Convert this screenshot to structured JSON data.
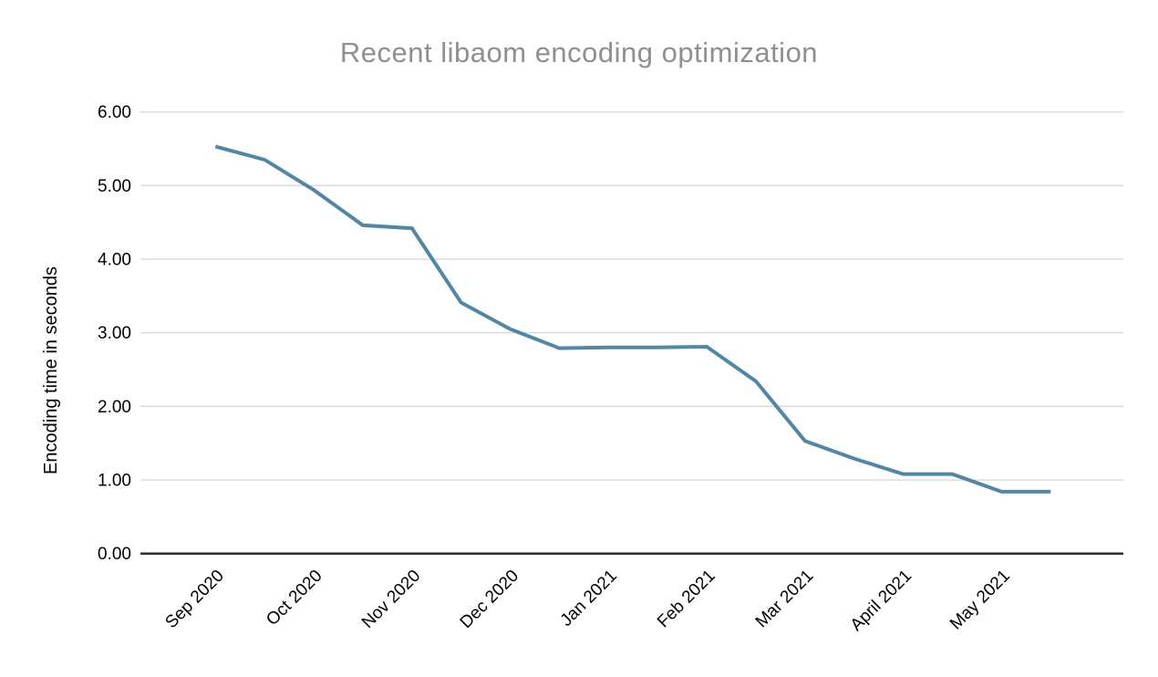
{
  "title": "Recent libaom encoding optimization",
  "colors": {
    "line": "#5286a5",
    "grid": "#d9d9d9",
    "axis": "#2e2e2e",
    "tick_label": "#000000",
    "title": "#8f8f8f",
    "background": "#ffffff"
  },
  "chart_data": {
    "type": "line",
    "title": "Recent libaom encoding optimization",
    "xlabel": "",
    "ylabel": "Encoding time in seconds",
    "x_tick_labels": [
      "Sep 2020",
      "Oct 2020",
      "Nov 2020",
      "Dec 2020",
      "Jan 2021",
      "Feb 2021",
      "Mar 2021",
      "April 2021",
      "May 2021"
    ],
    "x": [
      "2020-09-01",
      "2020-09-15",
      "2020-10-01",
      "2020-10-15",
      "2020-11-01",
      "2020-11-15",
      "2020-12-01",
      "2020-12-15",
      "2021-01-01",
      "2021-01-15",
      "2021-02-01",
      "2021-02-15",
      "2021-03-01",
      "2021-03-15",
      "2021-04-01",
      "2021-04-15",
      "2021-05-01",
      "2021-05-15"
    ],
    "series": [
      {
        "name": "Encoding time",
        "values": [
          5.53,
          5.35,
          4.94,
          4.46,
          4.42,
          3.41,
          3.05,
          2.79,
          2.8,
          2.8,
          2.81,
          2.34,
          1.53,
          1.29,
          1.08,
          1.08,
          0.84,
          0.84
        ]
      }
    ],
    "ylim": [
      0,
      6
    ],
    "ytick_labels": [
      "0.00",
      "1.00",
      "2.00",
      "3.00",
      "4.00",
      "5.00",
      "6.00"
    ],
    "grid": true,
    "legend": "none"
  }
}
